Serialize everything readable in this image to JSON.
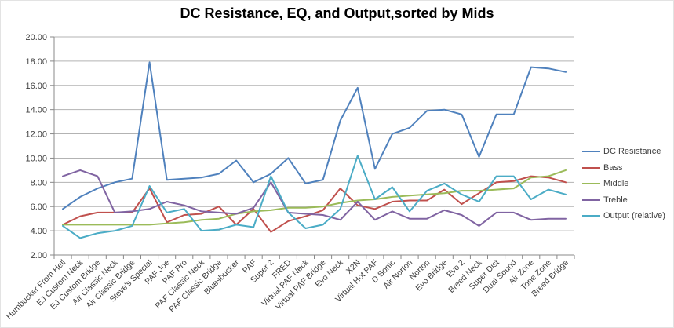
{
  "chart_data": {
    "type": "line",
    "title": "DC Resistance, EQ, and Output,sorted by Mids",
    "categories": [
      "Humbucker From Hell",
      "EJ Custom Neck",
      "EJ Custom Bridge",
      "Air Classic Neck",
      "Air Classic Bridge",
      "Steve's Special",
      "PAF Joe",
      "PAF Pro",
      "PAF Classic Neck",
      "PAF Classic Bridge",
      "Bluesbucker",
      "PAF",
      "Super 2",
      "FRED",
      "Virtual PAF Neck",
      "Virtual PAF Bridge",
      "Evo Neck",
      "X2N",
      "Virtual Hot PAF",
      "D Sonic",
      "Air Norton",
      "Norton",
      "Evo Bridge",
      "Evo 2",
      "Breed Neck",
      "Super Dist",
      "Dual Sound",
      "Air Zone",
      "Tone Zone",
      "Breed Bridge"
    ],
    "series": [
      {
        "name": "DC Resistance",
        "color": "#4F81BD",
        "values": [
          5.8,
          6.8,
          7.5,
          8.0,
          8.3,
          17.9,
          8.2,
          8.3,
          8.4,
          8.7,
          9.8,
          8.0,
          8.7,
          10.0,
          7.9,
          8.2,
          13.1,
          15.8,
          9.1,
          12.0,
          12.5,
          13.9,
          14.0,
          13.6,
          10.1,
          13.6,
          13.6,
          17.5,
          17.4,
          17.1
        ]
      },
      {
        "name": "Bass",
        "color": "#C0504D",
        "values": [
          4.5,
          5.2,
          5.5,
          5.5,
          5.5,
          7.5,
          4.7,
          5.3,
          5.4,
          6.0,
          4.5,
          5.8,
          3.9,
          4.8,
          5.2,
          5.7,
          7.5,
          6.1,
          5.8,
          6.4,
          6.5,
          6.5,
          7.4,
          6.2,
          7.1,
          8.0,
          8.1,
          8.5,
          8.4,
          8.0
        ]
      },
      {
        "name": "Middle",
        "color": "#9BBB59",
        "values": [
          4.5,
          4.5,
          4.5,
          4.5,
          4.5,
          4.5,
          4.6,
          4.7,
          4.9,
          5.0,
          5.4,
          5.6,
          5.7,
          5.9,
          5.9,
          6.0,
          6.3,
          6.5,
          6.6,
          6.8,
          6.9,
          7.0,
          7.1,
          7.3,
          7.3,
          7.4,
          7.5,
          8.4,
          8.5,
          9.0
        ]
      },
      {
        "name": "Treble",
        "color": "#8064A2",
        "values": [
          8.5,
          9.0,
          8.5,
          5.5,
          5.6,
          5.8,
          6.4,
          6.1,
          5.6,
          5.5,
          5.4,
          5.9,
          8.0,
          5.5,
          5.4,
          5.3,
          4.9,
          6.4,
          4.9,
          5.6,
          5.0,
          5.0,
          5.7,
          5.3,
          4.4,
          5.5,
          5.5,
          4.9,
          5.0,
          5.0
        ]
      },
      {
        "name": "Output (relative)",
        "color": "#4BACC6",
        "values": [
          4.4,
          3.4,
          3.8,
          4.0,
          4.4,
          7.7,
          5.5,
          5.8,
          4.0,
          4.1,
          4.5,
          4.3,
          8.5,
          5.5,
          4.2,
          4.5,
          5.8,
          10.2,
          6.6,
          7.6,
          5.6,
          7.3,
          7.9,
          7.0,
          6.4,
          8.5,
          8.5,
          6.6,
          7.4,
          7.0
        ]
      }
    ],
    "ylim": [
      2,
      20
    ],
    "ytick_step": 2,
    "ytick_labels": [
      "2.00",
      "4.00",
      "6.00",
      "8.00",
      "10.00",
      "12.00",
      "14.00",
      "16.00",
      "18.00",
      "20.00"
    ],
    "grid": true,
    "legend_position": "right",
    "x_label_rotation_deg": 45
  },
  "colors": {
    "background": "#FFFFFF",
    "gridline": "#B3B3B3",
    "axis": "#898989",
    "tick_label": "#3F3F3F",
    "title_text": "#000000",
    "outer_border": "#E3E3E3"
  }
}
